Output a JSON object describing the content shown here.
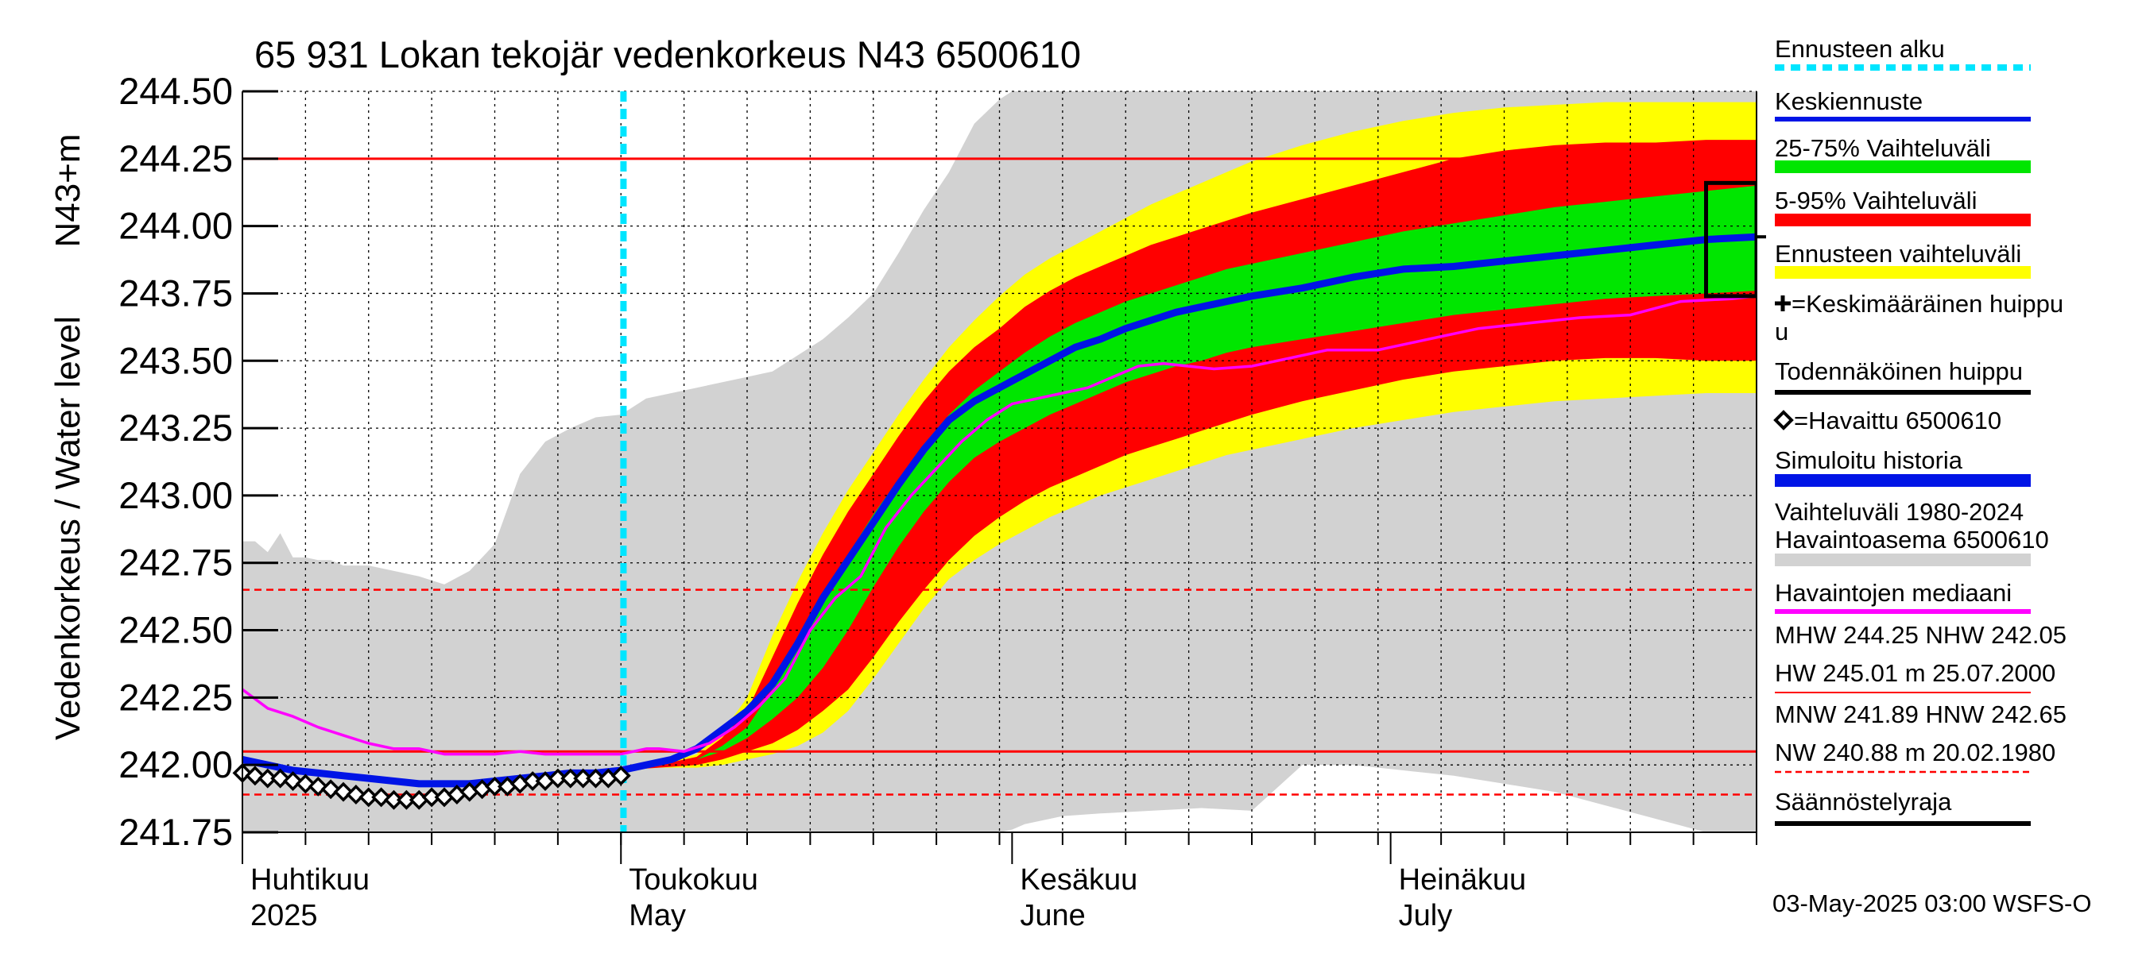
{
  "chart_data": {
    "type": "area",
    "title": "65 931 Lokan tekojär vedenkorkeus N43 6500610",
    "ylabel_left": "Vedenkorkeus / Water level",
    "ylabel_right": "N43+m",
    "ylim": [
      241.75,
      244.5
    ],
    "y_ticks": [
      "241.75",
      "242.00",
      "242.25",
      "242.50",
      "242.75",
      "243.00",
      "243.25",
      "243.50",
      "243.75",
      "244.00",
      "244.25",
      "244.50"
    ],
    "x_range": [
      0,
      120
    ],
    "x_unit": "days since 2025-04-01",
    "x_months": [
      {
        "fi": "Huhtikuu",
        "en": "2025",
        "day": 0
      },
      {
        "fi": "Toukokuu",
        "en": "May",
        "day": 30
      },
      {
        "fi": "Kesäkuu",
        "en": "June",
        "day": 61
      },
      {
        "fi": "Heinäkuu",
        "en": "July",
        "day": 91
      }
    ],
    "forecast_start_day": 30.2,
    "hlines": {
      "MHW": 244.25,
      "NHW": 242.05,
      "HNW": 242.65,
      "MNW": 241.89
    },
    "history_band": {
      "days": [
        0,
        1,
        2,
        3,
        4,
        5,
        6,
        7,
        8,
        10,
        12,
        14,
        16,
        18,
        20,
        22,
        24,
        26,
        28,
        30,
        32,
        34,
        36,
        38,
        40,
        42,
        44,
        46,
        48,
        50,
        52,
        54,
        56,
        58,
        60,
        61,
        62,
        65,
        68,
        72,
        76,
        80,
        84,
        88,
        92,
        96,
        100,
        104,
        108,
        112,
        116,
        118,
        120
      ],
      "upper": [
        242.83,
        242.83,
        242.79,
        242.86,
        242.77,
        242.77,
        242.76,
        242.76,
        242.74,
        242.74,
        242.72,
        242.7,
        242.67,
        242.72,
        242.82,
        243.08,
        243.2,
        243.25,
        243.29,
        243.3,
        243.36,
        243.38,
        243.4,
        243.42,
        243.44,
        243.46,
        243.52,
        243.58,
        243.66,
        243.75,
        243.9,
        244.06,
        244.2,
        244.38,
        244.47,
        244.5,
        244.5,
        244.5,
        244.5,
        244.5,
        244.5,
        244.5,
        244.5,
        244.5,
        244.5,
        244.5,
        244.5,
        244.5,
        244.5,
        244.5,
        244.5,
        244.5,
        244.5
      ],
      "lower": [
        241.75,
        241.75,
        241.75,
        241.75,
        241.75,
        241.75,
        241.75,
        241.75,
        241.75,
        241.75,
        241.75,
        241.75,
        241.75,
        241.75,
        241.75,
        241.75,
        241.75,
        241.75,
        241.75,
        241.75,
        241.75,
        241.75,
        241.75,
        241.75,
        241.75,
        241.75,
        241.75,
        241.75,
        241.75,
        241.75,
        241.75,
        241.75,
        241.75,
        241.75,
        241.75,
        241.76,
        241.78,
        241.81,
        241.82,
        241.83,
        241.84,
        241.83,
        242.0,
        242.0,
        241.98,
        241.96,
        241.93,
        241.9,
        241.85,
        241.8,
        241.75,
        241.75,
        241.75
      ]
    },
    "forecast_bands": {
      "days": [
        30,
        33,
        36,
        38,
        40,
        42,
        44,
        46,
        48,
        50,
        52,
        54,
        56,
        58,
        60,
        62,
        64,
        66,
        68,
        70,
        72,
        74,
        76,
        78,
        80,
        84,
        88,
        92,
        96,
        100,
        104,
        108,
        112,
        116,
        120
      ],
      "yellow_high": [
        241.98,
        242.0,
        242.04,
        242.12,
        242.25,
        242.48,
        242.68,
        242.86,
        243.02,
        243.16,
        243.3,
        243.43,
        243.55,
        243.65,
        243.74,
        243.82,
        243.88,
        243.93,
        243.98,
        244.03,
        244.08,
        244.12,
        244.16,
        244.2,
        244.24,
        244.3,
        244.35,
        244.39,
        244.42,
        244.44,
        244.45,
        244.46,
        244.46,
        244.46,
        244.46
      ],
      "red_high": [
        241.98,
        242.0,
        242.03,
        242.1,
        242.2,
        242.4,
        242.6,
        242.78,
        242.94,
        243.08,
        243.22,
        243.35,
        243.46,
        243.55,
        243.62,
        243.7,
        243.76,
        243.81,
        243.85,
        243.89,
        243.93,
        243.96,
        243.99,
        244.02,
        244.05,
        244.1,
        244.15,
        244.2,
        244.25,
        244.28,
        244.3,
        244.31,
        244.31,
        244.32,
        244.32
      ],
      "green_high": [
        241.98,
        242.0,
        242.02,
        242.07,
        242.14,
        242.28,
        242.45,
        242.62,
        242.78,
        242.93,
        243.06,
        243.19,
        243.3,
        243.39,
        243.46,
        243.53,
        243.59,
        243.64,
        243.68,
        243.72,
        243.75,
        243.78,
        243.81,
        243.84,
        243.86,
        243.9,
        243.94,
        243.98,
        244.01,
        244.04,
        244.07,
        244.09,
        244.11,
        244.13,
        244.15
      ],
      "green_low": [
        241.98,
        242.0,
        242.02,
        242.05,
        242.1,
        242.17,
        242.25,
        242.36,
        242.5,
        242.66,
        242.81,
        242.94,
        243.05,
        243.14,
        243.2,
        243.25,
        243.3,
        243.34,
        243.38,
        243.42,
        243.45,
        243.48,
        243.5,
        243.53,
        243.55,
        243.58,
        243.61,
        243.64,
        243.67,
        243.69,
        243.71,
        243.73,
        243.74,
        243.75,
        243.76
      ],
      "red_low": [
        241.98,
        241.99,
        242.0,
        242.02,
        242.05,
        242.08,
        242.13,
        242.2,
        242.28,
        242.4,
        242.53,
        242.65,
        242.76,
        242.85,
        242.92,
        242.98,
        243.03,
        243.07,
        243.11,
        243.15,
        243.18,
        243.21,
        243.24,
        243.27,
        243.3,
        243.35,
        243.39,
        243.43,
        243.46,
        243.48,
        243.5,
        243.51,
        243.51,
        243.5,
        243.5
      ],
      "yellow_low": [
        241.98,
        241.99,
        241.99,
        242.0,
        242.02,
        242.04,
        242.07,
        242.12,
        242.2,
        242.32,
        242.45,
        242.58,
        242.69,
        242.76,
        242.82,
        242.87,
        242.92,
        242.96,
        243.0,
        243.03,
        243.06,
        243.09,
        243.12,
        243.15,
        243.17,
        243.21,
        243.25,
        243.28,
        243.31,
        243.33,
        243.35,
        243.36,
        243.37,
        243.38,
        243.38
      ]
    },
    "median_history": {
      "days": [
        0,
        2,
        4,
        6,
        8,
        10,
        12,
        14,
        16,
        18,
        20,
        22,
        24,
        26,
        28,
        30,
        32,
        33,
        35,
        37,
        39,
        41,
        43,
        45,
        47,
        49,
        51,
        53,
        55,
        57,
        59,
        61,
        63,
        65,
        67,
        69,
        71,
        73,
        75,
        77,
        80,
        83,
        86,
        90,
        94,
        98,
        102,
        106,
        110,
        114,
        118,
        120
      ],
      "values": [
        242.28,
        242.21,
        242.18,
        242.14,
        242.11,
        242.08,
        242.06,
        242.06,
        242.04,
        242.04,
        242.04,
        242.05,
        242.04,
        242.04,
        242.04,
        242.04,
        242.06,
        242.06,
        242.05,
        242.08,
        242.14,
        242.22,
        242.32,
        242.5,
        242.62,
        242.7,
        242.88,
        243.0,
        243.1,
        243.2,
        243.28,
        243.34,
        243.36,
        243.38,
        243.4,
        243.44,
        243.48,
        243.49,
        243.48,
        243.47,
        243.48,
        243.51,
        243.54,
        243.54,
        243.58,
        243.62,
        243.64,
        243.66,
        243.67,
        243.72,
        243.73,
        243.74
      ]
    },
    "median_forecast": {
      "days": [
        0,
        2,
        4,
        6,
        8,
        10,
        12,
        14,
        16,
        18,
        20,
        22,
        24,
        26,
        28,
        30,
        32,
        34,
        36,
        38,
        40,
        42,
        44,
        46,
        48,
        50,
        52,
        54,
        56,
        58,
        60,
        62,
        64,
        66,
        68,
        70,
        72,
        74,
        76,
        78,
        80,
        84,
        88,
        92,
        96,
        100,
        104,
        108,
        112,
        116,
        120
      ],
      "values": [
        242.02,
        242.0,
        241.98,
        241.97,
        241.96,
        241.95,
        241.94,
        241.93,
        241.93,
        241.93,
        241.94,
        241.95,
        241.96,
        241.97,
        241.97,
        241.98,
        242.0,
        242.02,
        242.06,
        242.13,
        242.2,
        242.3,
        242.45,
        242.62,
        242.76,
        242.9,
        243.04,
        243.17,
        243.28,
        243.35,
        243.4,
        243.45,
        243.5,
        243.55,
        243.58,
        243.62,
        243.65,
        243.68,
        243.7,
        243.72,
        243.74,
        243.77,
        243.81,
        243.84,
        243.85,
        243.87,
        243.89,
        243.91,
        243.93,
        243.95,
        243.96
      ]
    },
    "observed": {
      "days": [
        0,
        1,
        2,
        3,
        4,
        5,
        6,
        7,
        8,
        9,
        10,
        11,
        12,
        13,
        14,
        15,
        16,
        17,
        18,
        19,
        20,
        21,
        22,
        23,
        24,
        25,
        26,
        27,
        28,
        29,
        30
      ],
      "values": [
        241.97,
        241.96,
        241.95,
        241.95,
        241.94,
        241.93,
        241.92,
        241.91,
        241.9,
        241.89,
        241.88,
        241.88,
        241.87,
        241.87,
        241.87,
        241.88,
        241.88,
        241.89,
        241.9,
        241.91,
        241.92,
        241.92,
        241.93,
        241.94,
        241.94,
        241.95,
        241.95,
        241.95,
        241.95,
        241.95,
        241.96
      ]
    },
    "peak_box": {
      "day_start": 116,
      "day_end": 120,
      "low": 243.74,
      "high": 244.16
    },
    "peak_tick_value": 243.96
  },
  "legend": {
    "items": [
      {
        "label": "Ennusteen alku",
        "color": "#00e5ff",
        "style": "dotted"
      },
      {
        "label": "Keskiennuste",
        "color": "#0014e6",
        "style": "line"
      },
      {
        "label": "25-75% Vaihteluväli",
        "color": "#00e600",
        "style": "thick"
      },
      {
        "label": "5-95% Vaihteluväli",
        "color": "#ff0000",
        "style": "thick"
      },
      {
        "label": "Ennusteen vaihteluväli",
        "color": "#ffff00",
        "style": "thick"
      },
      {
        "label": "=Keskimääräinen huippu",
        "label2": "u",
        "color": "#000000",
        "style": "none"
      },
      {
        "label": "Todennäköinen huippu",
        "color": "#000000",
        "style": "line"
      },
      {
        "label": "=Havaittu 6500610",
        "color": "#000000",
        "style": "none"
      },
      {
        "label": "Simuloitu historia",
        "color": "#0014e6",
        "style": "thick"
      },
      {
        "label": "Vaihteluväli 1980-2024",
        "label2": " Havaintoasema 6500610",
        "color": "#d2d2d2",
        "style": "thick"
      },
      {
        "label": "Havaintojen mediaani",
        "color": "#ff00ff",
        "style": "line"
      },
      {
        "label": "MHW 244.25 NHW 242.05",
        "label2": "HW 245.01 m 25.07.2000",
        "color": "#ff0000",
        "style": "thin"
      },
      {
        "label": "MNW 241.89 HNW 242.65",
        "label2": "NW 240.88 m 20.02.1980",
        "color": "#ff0000",
        "style": "dashed"
      },
      {
        "label": "Säännöstelyraja",
        "color": "#000000",
        "style": "line"
      }
    ]
  },
  "footer": "03-May-2025 03:00 WSFS-O",
  "colors": {
    "history_band": "#d2d2d2",
    "yellow": "#ffff00",
    "red": "#ff0000",
    "green": "#00e600",
    "median_forecast": "#0014e6",
    "median_history": "#ff00ff",
    "forecast_start": "#00e5ff",
    "ref_line": "#ff0000"
  }
}
